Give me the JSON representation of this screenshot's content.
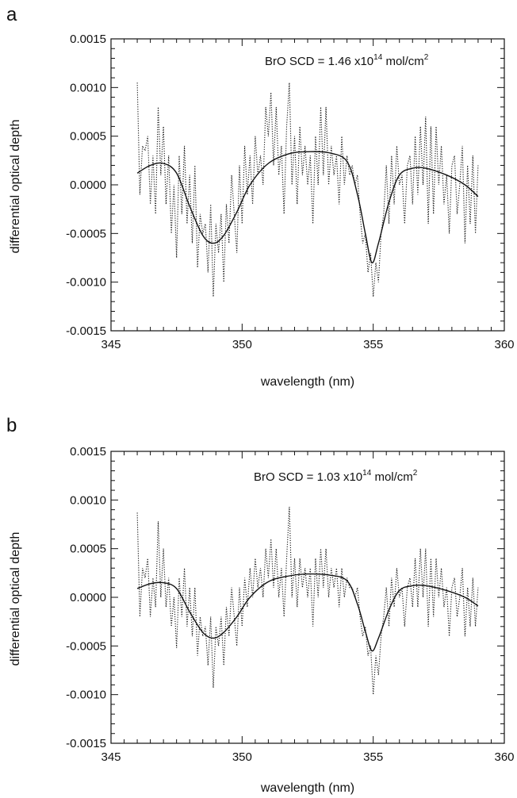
{
  "colors": {
    "line": "#111111",
    "background": "#ffffff"
  },
  "chart_data": [
    {
      "type": "line",
      "panel_label": "a",
      "xlabel": "wavelength (nm)",
      "ylabel": "differential optical depth",
      "xlim": [
        345,
        360
      ],
      "ylim": [
        -0.0015,
        0.0015
      ],
      "x_ticks": [
        345,
        350,
        355,
        360
      ],
      "x_tick_labels": [
        "345",
        "350",
        "355",
        "360"
      ],
      "y_ticks": [
        -0.0015,
        -0.001,
        -0.0005,
        0.0,
        0.0005,
        0.001,
        0.0015
      ],
      "y_tick_labels": [
        "-0.0015",
        "-0.0010",
        "-0.0005",
        "0.0000",
        "0.0005",
        "0.0010",
        "0.0015"
      ],
      "annotation": {
        "main": "BrO SCD = 1.46 x10",
        "exp": "14",
        "unit": " mol/cm",
        "unit_exp": "2"
      },
      "fit_series": {
        "style": "solid",
        "x": [
          346.0,
          346.5,
          347.0,
          347.5,
          348.0,
          348.5,
          348.9,
          349.3,
          349.8,
          350.3,
          351.0,
          351.8,
          352.5,
          353.3,
          354.0,
          354.4,
          354.7,
          354.95,
          355.2,
          355.6,
          356.0,
          356.5,
          357.0,
          357.8,
          358.5,
          359.0
        ],
        "y": [
          0.00012,
          0.0002,
          0.00022,
          0.00012,
          -0.00022,
          -0.00052,
          -0.0006,
          -0.00052,
          -0.00028,
          0.0,
          0.00022,
          0.00032,
          0.00034,
          0.00033,
          0.00024,
          -0.0001,
          -0.0005,
          -0.0008,
          -0.0006,
          -0.00018,
          0.0001,
          0.00017,
          0.00017,
          0.0001,
          0.0,
          -0.00012
        ]
      },
      "measured_series": {
        "style": "dotted",
        "x": [
          346.0,
          346.1,
          346.2,
          346.3,
          346.4,
          346.5,
          346.6,
          346.7,
          346.8,
          346.9,
          347.0,
          347.1,
          347.2,
          347.3,
          347.4,
          347.5,
          347.6,
          347.7,
          347.8,
          347.9,
          348.0,
          348.1,
          348.2,
          348.3,
          348.4,
          348.5,
          348.6,
          348.7,
          348.8,
          348.9,
          349.0,
          349.1,
          349.2,
          349.3,
          349.4,
          349.5,
          349.6,
          349.7,
          349.8,
          349.9,
          350.0,
          350.1,
          350.2,
          350.3,
          350.4,
          350.5,
          350.6,
          350.7,
          350.8,
          350.9,
          351.0,
          351.1,
          351.2,
          351.3,
          351.4,
          351.5,
          351.6,
          351.7,
          351.8,
          351.9,
          352.0,
          352.1,
          352.2,
          352.3,
          352.4,
          352.5,
          352.6,
          352.7,
          352.8,
          352.9,
          353.0,
          353.1,
          353.2,
          353.3,
          353.4,
          353.5,
          353.6,
          353.7,
          353.8,
          353.9,
          354.0,
          354.1,
          354.2,
          354.3,
          354.4,
          354.5,
          354.6,
          354.7,
          354.8,
          354.9,
          355.0,
          355.1,
          355.2,
          355.3,
          355.4,
          355.5,
          355.6,
          355.7,
          355.8,
          355.9,
          356.0,
          356.1,
          356.2,
          356.3,
          356.4,
          356.5,
          356.6,
          356.7,
          356.8,
          356.9,
          357.0,
          357.1,
          357.2,
          357.3,
          357.4,
          357.5,
          357.6,
          357.7,
          357.8,
          357.9,
          358.0,
          358.1,
          358.2,
          358.3,
          358.4,
          358.5,
          358.6,
          358.7,
          358.8,
          358.9,
          359.0
        ],
        "y": [
          0.00105,
          -0.0001,
          0.0004,
          0.00035,
          0.0005,
          -0.0002,
          0.0003,
          -0.0003,
          0.0008,
          0.0001,
          0.0006,
          -0.0002,
          0.0003,
          -0.0005,
          0.0,
          -0.00075,
          0.0003,
          -0.0003,
          0.0004,
          -0.0004,
          0.0001,
          -0.0006,
          0.0002,
          -0.00085,
          -0.0003,
          -0.0005,
          -0.0004,
          -0.0009,
          -0.0002,
          -0.00115,
          -0.0004,
          -0.0007,
          -0.0003,
          -0.001,
          -0.0002,
          -0.0006,
          0.0001,
          -0.0003,
          -0.0007,
          0.0002,
          -0.0004,
          0.0004,
          -0.0001,
          0.0003,
          -0.0002,
          0.0005,
          0.0001,
          0.0003,
          0.0,
          0.0008,
          0.0005,
          0.00095,
          0.0002,
          0.0008,
          0.0001,
          0.0004,
          -0.0003,
          0.0006,
          0.00105,
          0.0,
          0.0005,
          -0.0002,
          0.0006,
          0.0001,
          0.0004,
          0.0,
          0.0003,
          -0.0004,
          0.0005,
          0.0,
          0.0008,
          0.0001,
          0.0008,
          0.0,
          0.0004,
          0.0001,
          0.0003,
          -0.0002,
          0.0005,
          0.0,
          0.0003,
          0.0001,
          0.0002,
          0.0,
          0.0001,
          -0.0003,
          -0.0006,
          -0.0005,
          -0.0009,
          -0.0007,
          -0.00115,
          -0.0008,
          -0.001,
          -0.0005,
          -0.0003,
          0.0002,
          -0.0004,
          0.0003,
          -0.0002,
          0.0004,
          0.0,
          0.0001,
          -0.0004,
          0.0002,
          0.0003,
          -0.0002,
          0.0005,
          -0.0001,
          0.0006,
          0.0,
          0.0007,
          -0.0004,
          0.0006,
          -0.0003,
          0.0006,
          0.0,
          0.0004,
          -0.0002,
          0.0001,
          -0.0005,
          0.0002,
          0.0003,
          -0.0003,
          0.0,
          0.0004,
          -0.0006,
          0.0002,
          -0.0004,
          0.0003,
          -0.0005,
          0.0002
        ]
      }
    },
    {
      "type": "line",
      "panel_label": "b",
      "xlabel": "wavelength (nm)",
      "ylabel": "differential optical depth",
      "xlim": [
        345,
        360
      ],
      "ylim": [
        -0.0015,
        0.0015
      ],
      "x_ticks": [
        345,
        350,
        355,
        360
      ],
      "x_tick_labels": [
        "345",
        "350",
        "355",
        "360"
      ],
      "y_ticks": [
        -0.0015,
        -0.001,
        -0.0005,
        0.0,
        0.0005,
        0.001,
        0.0015
      ],
      "y_tick_labels": [
        "-0.0015",
        "-0.0010",
        "-0.0005",
        "0.0000",
        "0.0005",
        "0.0010",
        "0.0015"
      ],
      "annotation": {
        "main": "BrO SCD = 1.03 x10",
        "exp": "14",
        "unit": " mol/cm",
        "unit_exp": "2"
      },
      "fit_series": {
        "style": "solid",
        "x": [
          346.0,
          346.5,
          347.0,
          347.5,
          348.0,
          348.5,
          348.9,
          349.3,
          349.8,
          350.3,
          351.0,
          351.8,
          352.5,
          353.3,
          354.0,
          354.4,
          354.7,
          354.95,
          355.2,
          355.6,
          356.0,
          356.5,
          357.0,
          357.8,
          358.5,
          359.0
        ],
        "y": [
          9e-05,
          0.00014,
          0.00015,
          9e-05,
          -0.00015,
          -0.00036,
          -0.00042,
          -0.00036,
          -0.0002,
          0.0,
          0.00016,
          0.00022,
          0.00024,
          0.00023,
          0.00017,
          -7e-05,
          -0.00035,
          -0.00055,
          -0.00042,
          -0.00013,
          7e-05,
          0.00012,
          0.00012,
          7e-05,
          0.0,
          -9e-05
        ]
      },
      "measured_series": {
        "style": "dotted",
        "x": [
          346.0,
          346.1,
          346.2,
          346.3,
          346.4,
          346.5,
          346.6,
          346.7,
          346.8,
          346.9,
          347.0,
          347.1,
          347.2,
          347.3,
          347.4,
          347.5,
          347.6,
          347.7,
          347.8,
          347.9,
          348.0,
          348.1,
          348.2,
          348.3,
          348.4,
          348.5,
          348.6,
          348.7,
          348.8,
          348.9,
          349.0,
          349.1,
          349.2,
          349.3,
          349.4,
          349.5,
          349.6,
          349.7,
          349.8,
          349.9,
          350.0,
          350.1,
          350.2,
          350.3,
          350.4,
          350.5,
          350.6,
          350.7,
          350.8,
          350.9,
          351.0,
          351.1,
          351.2,
          351.3,
          351.4,
          351.5,
          351.6,
          351.7,
          351.8,
          351.9,
          352.0,
          352.1,
          352.2,
          352.3,
          352.4,
          352.5,
          352.6,
          352.7,
          352.8,
          352.9,
          353.0,
          353.1,
          353.2,
          353.3,
          353.4,
          353.5,
          353.6,
          353.7,
          353.8,
          353.9,
          354.0,
          354.1,
          354.2,
          354.3,
          354.4,
          354.5,
          354.6,
          354.7,
          354.8,
          354.9,
          355.0,
          355.1,
          355.2,
          355.3,
          355.4,
          355.5,
          355.6,
          355.7,
          355.8,
          355.9,
          356.0,
          356.1,
          356.2,
          356.3,
          356.4,
          356.5,
          356.6,
          356.7,
          356.8,
          356.9,
          357.0,
          357.1,
          357.2,
          357.3,
          357.4,
          357.5,
          357.6,
          357.7,
          357.8,
          357.9,
          358.0,
          358.1,
          358.2,
          358.3,
          358.4,
          358.5,
          358.6,
          358.7,
          358.8,
          358.9,
          359.0
        ],
        "y": [
          0.00087,
          -0.0002,
          0.0003,
          0.0002,
          0.0004,
          -0.0002,
          0.0002,
          -0.0001,
          0.00078,
          0.0,
          0.0005,
          -0.0001,
          0.0002,
          -0.0003,
          0.0,
          -0.00052,
          0.0002,
          -0.0002,
          0.0003,
          -0.0003,
          0.0001,
          -0.0004,
          0.0001,
          -0.0006,
          -0.0002,
          -0.0004,
          -0.0003,
          -0.0007,
          -0.0002,
          -0.00093,
          -0.0003,
          -0.0005,
          -0.0002,
          -0.0007,
          -0.0001,
          -0.0004,
          0.0001,
          -0.0002,
          -0.0005,
          0.0001,
          -0.0003,
          0.0002,
          -0.0001,
          0.0003,
          0.0,
          0.0004,
          0.0001,
          0.0003,
          0.0,
          0.0005,
          0.0002,
          0.0006,
          0.0001,
          0.0005,
          0.0,
          0.0003,
          -0.0002,
          0.0004,
          0.00093,
          0.0,
          0.0004,
          -0.0001,
          0.0004,
          0.0001,
          0.0003,
          0.0,
          0.0003,
          -0.0003,
          0.0004,
          0.0,
          0.0005,
          0.0001,
          0.0005,
          0.0,
          0.0003,
          0.0001,
          0.0003,
          -0.0001,
          0.0003,
          0.0,
          0.0002,
          0.0001,
          0.0001,
          0.0,
          0.0001,
          -0.0002,
          -0.0004,
          -0.0003,
          -0.0006,
          -0.0005,
          -0.001,
          -0.0006,
          -0.0008,
          -0.0004,
          -0.0002,
          0.0001,
          -0.0003,
          0.0002,
          -0.0001,
          0.0003,
          0.0,
          0.0001,
          -0.0003,
          0.0001,
          0.0002,
          -0.0001,
          0.0004,
          -0.0001,
          0.0005,
          0.0,
          0.0005,
          -0.0003,
          0.0004,
          -0.0002,
          0.0004,
          0.0,
          0.0003,
          -0.0001,
          0.0001,
          -0.0004,
          0.0001,
          0.0002,
          -0.0002,
          0.0,
          0.0003,
          -0.0004,
          0.0001,
          -0.0003,
          0.0002,
          -0.0003,
          0.0001
        ]
      }
    }
  ]
}
